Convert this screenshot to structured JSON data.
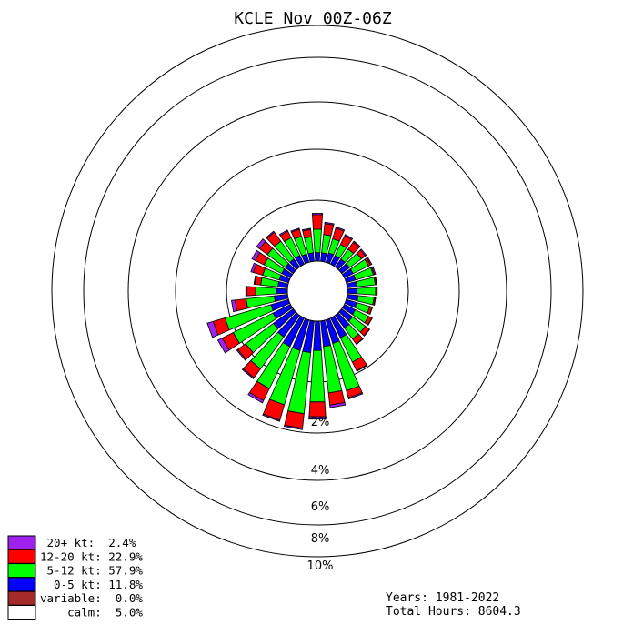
{
  "chart_data": {
    "type": "windrose",
    "title": "KCLE Nov 00Z-06Z",
    "direction_count": 36,
    "direction_step_deg": 10,
    "ring_percent_labels": [
      "2%",
      "4%",
      "6%",
      "8%",
      "10%"
    ],
    "ring_percent_values": [
      2,
      4,
      6,
      8,
      10
    ],
    "legend": [
      {
        "label": " 20+ kt:",
        "value": " 2.4%",
        "color": "#a020f0"
      },
      {
        "label": "12-20 kt:",
        "value": "22.9%",
        "color": "#ff0000"
      },
      {
        "label": " 5-12 kt:",
        "value": "57.9%",
        "color": "#00ff00"
      },
      {
        "label": "  0-5 kt:",
        "value": "11.8%",
        "color": "#0000ff"
      },
      {
        "label": "variable:",
        "value": " 0.0%",
        "color": "#a52a2a"
      },
      {
        "label": "    calm:",
        "value": " 5.0%",
        "color": "#ffffff"
      }
    ],
    "bins": [
      "0-5 kt",
      "5-12 kt",
      "12-20 kt",
      "20+ kt"
    ],
    "bin_colors": [
      "#0000ff",
      "#00ff00",
      "#ff0000",
      "#a020f0"
    ],
    "series_cumulative_percent": [
      {
        "dir_deg": 0,
        "upper": [
          0.35,
          1.3,
          1.9,
          1.95
        ]
      },
      {
        "dir_deg": 10,
        "upper": [
          0.35,
          1.1,
          1.55,
          1.6
        ]
      },
      {
        "dir_deg": 20,
        "upper": [
          0.4,
          1.0,
          1.45,
          1.5
        ]
      },
      {
        "dir_deg": 30,
        "upper": [
          0.4,
          0.9,
          1.3,
          1.35
        ]
      },
      {
        "dir_deg": 40,
        "upper": [
          0.4,
          0.9,
          1.25,
          1.3
        ]
      },
      {
        "dir_deg": 50,
        "upper": [
          0.4,
          1.0,
          1.2,
          1.25
        ]
      },
      {
        "dir_deg": 60,
        "upper": [
          0.4,
          1.1,
          1.2,
          1.25
        ]
      },
      {
        "dir_deg": 70,
        "upper": [
          0.4,
          1.15,
          1.2,
          1.25
        ]
      },
      {
        "dir_deg": 80,
        "upper": [
          0.4,
          1.15,
          1.2,
          1.22
        ]
      },
      {
        "dir_deg": 90,
        "upper": [
          0.4,
          1.15,
          1.2,
          1.22
        ]
      },
      {
        "dir_deg": 100,
        "upper": [
          0.45,
          1.1,
          1.15,
          1.17
        ]
      },
      {
        "dir_deg": 110,
        "upper": [
          0.45,
          1.0,
          1.1,
          1.12
        ]
      },
      {
        "dir_deg": 120,
        "upper": [
          0.5,
          1.1,
          1.25,
          1.27
        ]
      },
      {
        "dir_deg": 130,
        "upper": [
          0.55,
          1.2,
          1.4,
          1.42
        ]
      },
      {
        "dir_deg": 140,
        "upper": [
          0.65,
          1.2,
          1.45,
          1.47
        ]
      },
      {
        "dir_deg": 150,
        "upper": [
          0.9,
          2.0,
          2.4,
          2.42
        ]
      },
      {
        "dir_deg": 160,
        "upper": [
          1.0,
          3.0,
          3.3,
          3.35
        ]
      },
      {
        "dir_deg": 170,
        "upper": [
          1.05,
          2.95,
          3.45,
          3.55
        ]
      },
      {
        "dir_deg": 180,
        "upper": [
          1.2,
          3.3,
          3.9,
          4.0
        ]
      },
      {
        "dir_deg": 190,
        "upper": [
          1.3,
          3.8,
          4.4,
          4.45
        ]
      },
      {
        "dir_deg": 200,
        "upper": [
          1.3,
          3.6,
          4.25,
          4.3
        ]
      },
      {
        "dir_deg": 210,
        "upper": [
          1.3,
          3.2,
          3.75,
          3.85
        ]
      },
      {
        "dir_deg": 220,
        "upper": [
          1.1,
          2.7,
          3.15,
          3.2
        ]
      },
      {
        "dir_deg": 230,
        "upper": [
          1.0,
          2.4,
          2.8,
          2.85
        ]
      },
      {
        "dir_deg": 240,
        "upper": [
          0.8,
          2.6,
          3.1,
          3.3
        ]
      },
      {
        "dir_deg": 250,
        "upper": [
          0.75,
          2.7,
          3.2,
          3.45
        ]
      },
      {
        "dir_deg": 260,
        "upper": [
          0.55,
          1.7,
          2.15,
          2.3
        ]
      },
      {
        "dir_deg": 270,
        "upper": [
          0.45,
          1.3,
          1.65,
          1.7
        ]
      },
      {
        "dir_deg": 280,
        "upper": [
          0.4,
          1.1,
          1.35,
          1.38
        ]
      },
      {
        "dir_deg": 290,
        "upper": [
          0.4,
          1.1,
          1.5,
          1.6
        ]
      },
      {
        "dir_deg": 300,
        "upper": [
          0.4,
          1.2,
          1.6,
          1.75
        ]
      },
      {
        "dir_deg": 310,
        "upper": [
          0.4,
          1.3,
          1.7,
          1.85
        ]
      },
      {
        "dir_deg": 320,
        "upper": [
          0.4,
          1.3,
          1.75,
          1.8
        ]
      },
      {
        "dir_deg": 330,
        "upper": [
          0.4,
          1.2,
          1.5,
          1.55
        ]
      },
      {
        "dir_deg": 340,
        "upper": [
          0.35,
          1.1,
          1.4,
          1.45
        ]
      },
      {
        "dir_deg": 350,
        "upper": [
          0.35,
          1.0,
          1.3,
          1.35
        ]
      }
    ]
  },
  "footer": {
    "years": "Years: 1981-2022",
    "total_hours": "Total Hours: 8604.3"
  }
}
